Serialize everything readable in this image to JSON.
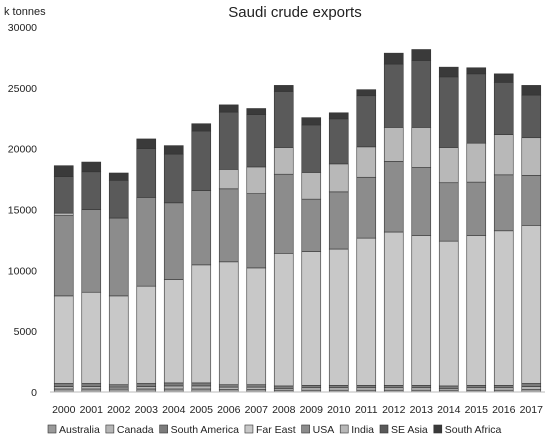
{
  "chart_data": {
    "type": "bar",
    "stacked": true,
    "title": "Saudi crude exports",
    "ylabel": "k tonnes",
    "xlabel": "",
    "ylim": [
      0,
      30000
    ],
    "yticks": [
      0,
      5000,
      10000,
      15000,
      20000,
      25000,
      30000
    ],
    "grid": false,
    "legend_position": "bottom",
    "categories": [
      "2000",
      "2001",
      "2002",
      "2003",
      "2004",
      "2005",
      "2006",
      "2007",
      "2008",
      "2009",
      "2010",
      "2011",
      "2012",
      "2013",
      "2014",
      "2015",
      "2016",
      "2017"
    ],
    "series": [
      {
        "name": "Australia",
        "color": "#9a9a9a",
        "values": [
          250,
          250,
          250,
          250,
          250,
          250,
          200,
          200,
          150,
          150,
          150,
          150,
          150,
          150,
          150,
          150,
          150,
          200
        ]
      },
      {
        "name": "Canada",
        "color": "#b5b5b5",
        "values": [
          200,
          200,
          150,
          200,
          250,
          250,
          200,
          200,
          150,
          200,
          200,
          200,
          200,
          200,
          150,
          200,
          200,
          250
        ]
      },
      {
        "name": "South America",
        "color": "#7c7c7c",
        "values": [
          250,
          250,
          200,
          250,
          250,
          250,
          200,
          200,
          200,
          200,
          200,
          200,
          200,
          200,
          200,
          200,
          200,
          250
        ]
      },
      {
        "name": "Far East",
        "color": "#c8c8c8",
        "values": [
          7200,
          7500,
          7300,
          8000,
          8500,
          9700,
          10100,
          9600,
          10900,
          11000,
          11200,
          12100,
          12600,
          12300,
          11900,
          12300,
          12700,
          13000
        ]
      },
      {
        "name": "USA",
        "color": "#8c8c8c",
        "values": [
          6600,
          6800,
          6400,
          7300,
          6300,
          6100,
          6000,
          6100,
          6500,
          4300,
          4700,
          5000,
          5800,
          5600,
          4800,
          4400,
          4600,
          4100
        ]
      },
      {
        "name": "India",
        "color": "#b8b8b8",
        "values": [
          200,
          0,
          0,
          0,
          0,
          0,
          1600,
          2200,
          2200,
          2200,
          2300,
          2500,
          2800,
          3300,
          2900,
          3200,
          3300,
          3100
        ]
      },
      {
        "name": "SE Asia",
        "color": "#5a5a5a",
        "values": [
          3000,
          3100,
          3100,
          4000,
          4000,
          4900,
          4700,
          4300,
          4600,
          3900,
          3700,
          4200,
          5200,
          5500,
          5800,
          5700,
          4300,
          3500
        ]
      },
      {
        "name": "South Africa",
        "color": "#3a3a3a",
        "values": [
          900,
          800,
          600,
          800,
          700,
          600,
          600,
          500,
          500,
          600,
          500,
          500,
          900,
          900,
          800,
          500,
          700,
          800
        ]
      }
    ]
  }
}
